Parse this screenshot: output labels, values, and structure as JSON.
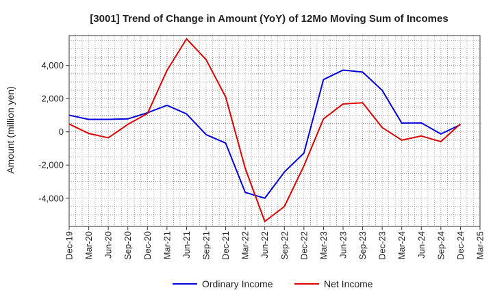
{
  "chart_data": {
    "type": "line",
    "title": "[3001]  Trend of Change in Amount (YoY) of 12Mo Moving Sum of Incomes",
    "xlabel": "",
    "ylabel": "Amount (million yen)",
    "ylim": [
      -5700,
      5800
    ],
    "yticks": [
      4000,
      2000,
      0,
      -2000,
      -4000
    ],
    "ytick_labels": [
      "4,000",
      "2,000",
      "0",
      "-2,000",
      "-4,000"
    ],
    "categories": [
      "Dec-19",
      "Mar-20",
      "Jun-20",
      "Sep-20",
      "Dec-20",
      "Mar-21",
      "Jun-21",
      "Sep-21",
      "Dec-21",
      "Mar-22",
      "Jun-22",
      "Sep-22",
      "Dec-22",
      "Mar-23",
      "Jun-23",
      "Sep-23",
      "Dec-23",
      "Mar-24",
      "Jun-24",
      "Sep-24",
      "Dec-24",
      "Mar-25"
    ],
    "grid": true,
    "legend_position": "bottom",
    "series": [
      {
        "name": "Ordinary Income",
        "color": "#0000dd",
        "values": [
          1000,
          750,
          750,
          780,
          1150,
          1600,
          1080,
          -170,
          -680,
          -3650,
          -4000,
          -2420,
          -1280,
          3150,
          3720,
          3600,
          2500,
          530,
          540,
          -130,
          430,
          null
        ]
      },
      {
        "name": "Net Income",
        "color": "#dd0000",
        "values": [
          470,
          -100,
          -360,
          450,
          1100,
          3700,
          5600,
          4350,
          2100,
          -2200,
          -5400,
          -4500,
          -2050,
          780,
          1680,
          1750,
          260,
          -500,
          -250,
          -590,
          480,
          null
        ]
      }
    ]
  }
}
